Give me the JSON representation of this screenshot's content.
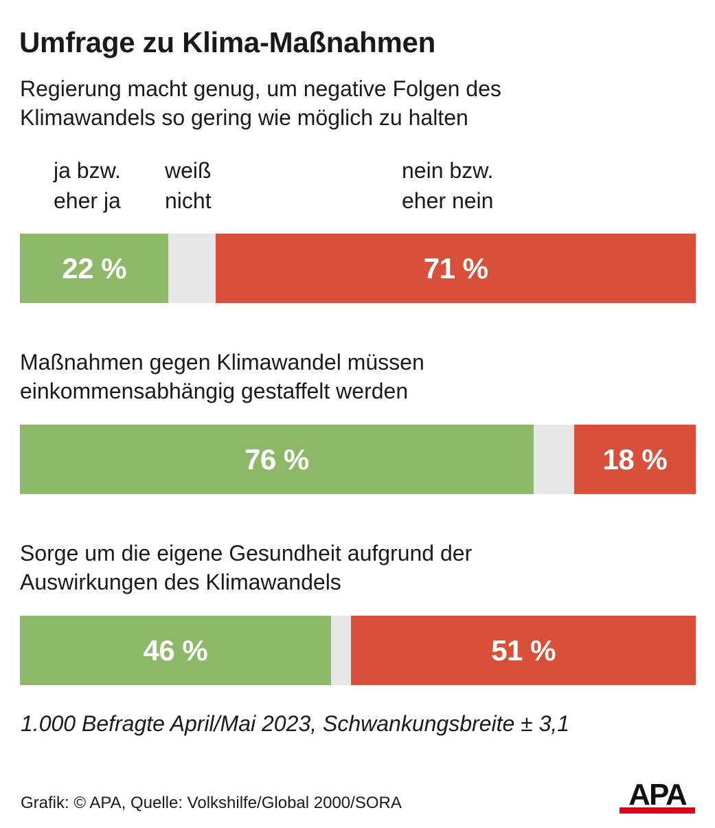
{
  "title": "Umfrage zu Klima-Maßnahmen",
  "legend": {
    "yes": "ja bzw.\neher ja",
    "dontknow": "weiß\nnicht",
    "no": "nein bzw.\neher nein"
  },
  "colors": {
    "yes": "#8db867",
    "dontknow": "#e6e6e6",
    "no": "#d9503a"
  },
  "chart_data": {
    "type": "bar",
    "orientation": "horizontal-stacked-100",
    "series": [
      {
        "name": "ja bzw. eher ja",
        "values": [
          22,
          76,
          46
        ]
      },
      {
        "name": "weiß nicht",
        "values": [
          7,
          6,
          3
        ]
      },
      {
        "name": "nein bzw. eher nein",
        "values": [
          71,
          18,
          51
        ]
      }
    ],
    "questions": [
      {
        "text": "Regierung macht genug, um negative Folgen des\nKlimawandels so gering wie möglich zu halten",
        "yes": 22,
        "dontknow": 7,
        "no": 71,
        "yes_label": "22 %",
        "no_label": "71 %"
      },
      {
        "text": "Maßnahmen gegen Klimawandel müssen\neinkommensabhängig gestaffelt werden",
        "yes": 76,
        "dontknow": 6,
        "no": 18,
        "yes_label": "76 %",
        "no_label": "18 %"
      },
      {
        "text": "Sorge um die eigene Gesundheit aufgrund der\nAuswirkungen des Klimawandels",
        "yes": 46,
        "dontknow": 3,
        "no": 51,
        "yes_label": "46 %",
        "no_label": "51 %"
      }
    ]
  },
  "footnote": "1.000 Befragte April/Mai 2023, Schwankungsbreite ± 3,1",
  "source": "Grafik: © APA, Quelle: Volkshilfe/Global 2000/SORA",
  "logo": {
    "text": "APA",
    "icon": "apa-logo-icon"
  }
}
